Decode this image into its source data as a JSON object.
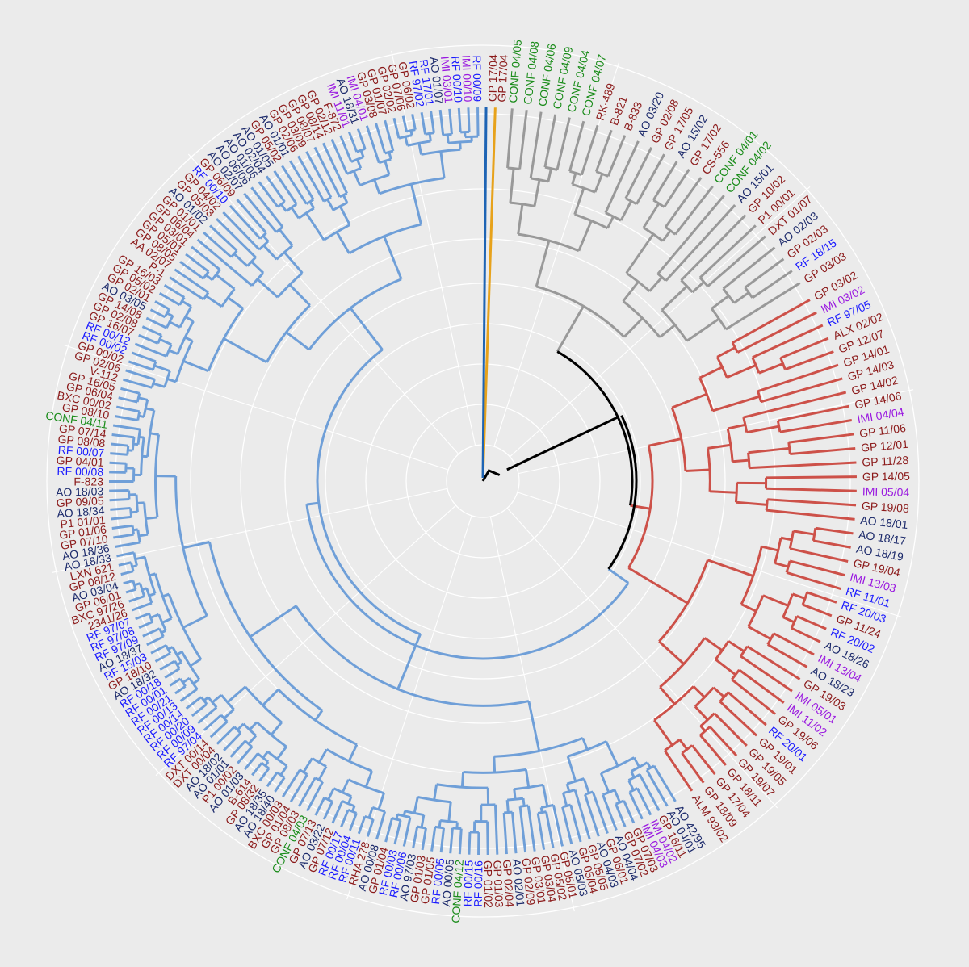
{
  "colors": {
    "background": "#ebebeb",
    "grid": "#ffffff",
    "clade_blue": "#6f9fd8",
    "clade_gray": "#999999",
    "clade_red": "#cd5149",
    "root_black": "#000000",
    "branch_orange": "#e7a21b",
    "branch_darkblue": "#1e64b4",
    "label_GP": "#8b1a1a",
    "label_AO": "#1c2a6b",
    "label_RF": "#1a1aff",
    "label_IMI": "#9a1ae0",
    "label_CONF": "#1a8c1a"
  },
  "tree": {
    "clades": [
      {
        "name": "root-gray",
        "color": "gray",
        "tips": [
          "CONF 04/05",
          "CONF 04/08",
          "CONF 04/06",
          "CONF 04/09",
          "CONF 04/04",
          "CONF 04/07",
          "RK-489",
          "B-821",
          "B-833",
          "AO 03/20",
          "GP 02/08",
          "GP 17/05",
          "AO 15/02",
          "GP 17/02",
          "CS-556",
          "CONF 04/01",
          "CONF 04/02",
          "AO 15/01",
          "GP 10/02",
          "P1 00/01",
          "DXT 01/07",
          "AO 02/03",
          "GP 02/03",
          "RF 18/15",
          "GP 03/03"
        ]
      },
      {
        "name": "root-red",
        "color": "red",
        "tips": [
          "GP 03/02",
          "IMI 03/02",
          "RF 97/05",
          "ALX 02/02",
          "GP 12/07",
          "GP 14/01",
          "GP 14/03",
          "GP 14/02",
          "GP 14/06",
          "IMI 04/04",
          "GP 11/06",
          "GP 12/01",
          "GP 11/28",
          "GP 14/05",
          "IMI 05/04",
          "GP 19/08",
          "AO 18/01",
          "AO 18/17",
          "AO 18/19",
          "GP 19/04",
          "IMI 13/03",
          "RF 11/01",
          "RF 20/03",
          "GP 11/24",
          "RF 20/02",
          "AO 18/26",
          "IMI 13/04",
          "AO 18/23",
          "GP 19/03",
          "IMI 05/01",
          "IMI 11/02",
          "GP 19/06",
          "RF 20/01",
          "GP 19/01",
          "GP 19/05",
          "GP 19/07",
          "GP 18/11",
          "GP 17/04",
          "GP 18/09",
          "ALM 93/02"
        ]
      },
      {
        "name": "root-blue",
        "color": "blue",
        "tips": [
          "AO 42/95",
          "AO 04/01",
          "GP 16/11",
          "IMI 04/02",
          "IMI 04/03",
          "GP 07/03",
          "GP 07/02",
          "AO 04/04",
          "GP 06/01",
          "AO 04/03",
          "GP 05/05",
          "GP 05/04",
          "AO 05/03",
          "GP 05/01",
          "GP 05/02",
          "GP 03/04",
          "GP 03/01",
          "GP 02/09",
          "AO 02/01",
          "GP 02/04",
          "GP 01/03",
          "GP 01/02",
          "RF 00/16",
          "RF 00/15",
          "CONF 04/12",
          "AO 00/05",
          "RF 00/05",
          "GP 01/05",
          "GP 01/03",
          "AO 97/03",
          "RF 00/06",
          "RF 00/03",
          "GP 01/04",
          "AO 00/08",
          "RHA 278",
          "RF 00/11",
          "RF 00/04",
          "RF 00/17",
          "GP 07/12",
          "AO 03/22",
          "GP 07/13",
          "CONF 04/03",
          "GP 08/03",
          "GP 01/04",
          "BXC 00/03",
          "AO 18/40",
          "AO 18/35",
          "GP 08/32",
          "B-614",
          "AO 01/03",
          "P1 00/02",
          "AO 01/01",
          "AO 18/02",
          "DXT 00/04",
          "DXT 00/14",
          "RF 97/04",
          "RF 00/09",
          "RF 00/20",
          "RF 00/14",
          "RF 00/13",
          "RF 00/21",
          "RF 00/01",
          "RF 00/18",
          "AO 18/32",
          "GP 18/10",
          "RF 15/03",
          "AO 18/37",
          "RF 97/09",
          "RF 97/08",
          "RF 97/07",
          "2341/26",
          "BXC 97/26",
          "GP 06/01",
          "AO 03/04",
          "GP 08/12",
          "LXN 621",
          "AO 18/33",
          "AO 18/36",
          "GP 07/10",
          "GP 01/06",
          "P1 01/01",
          "AO 18/34",
          "GP 09/05",
          "AO 18/03",
          "F-823",
          "RF 00/08",
          "GP 04/01",
          "RF 00/07",
          "GP 08/08",
          "GP 07/14",
          "CONF 04/11",
          "GP 08/10",
          "BXC 00/02",
          "GP 06/04",
          "GP 16/05",
          "V-112",
          "GP 02/06",
          "GP 00/02",
          "RF 00/02",
          "RF 00/12",
          "GP 16/07",
          "GP 02/08",
          "GP 14/08",
          "AO 03/05",
          "GP 02/01",
          "GP 05/02",
          "GP 16/03",
          "P-1",
          "AA 02/07",
          "GP 08/05",
          "GP 05/01",
          "GP 03/01",
          "GP 06/04",
          "GP 01/01",
          "AO 01/02",
          "GP 05/03",
          "GP 04/02",
          "RF 00/10",
          "GP 06/09",
          "AO 02/07",
          "AO 06/06",
          "AO 01/06",
          "AO 02/04",
          "AO 01/05",
          "GP 05/02",
          "AO 01/01",
          "GP 02/06",
          "GP 03/09",
          "GP 08/07",
          "GP 08/14",
          "GP 02/12",
          "F-872",
          "IMI 11/01",
          "AO 18/31",
          "IMI 04/01",
          "GP 03/08",
          "GP 01/07",
          "GP 02/02",
          "GP 07/06",
          "GP 06/02",
          "RF 97/02",
          "RF 17/01",
          "AO 01/07",
          "IMI 03/01",
          "RF 00/10",
          "IMI 00/10",
          "RF 00/09"
        ]
      }
    ],
    "singletons": [
      {
        "label": "GP 17/04",
        "branch": "orange"
      },
      {
        "label": "GP 17/04",
        "branch": "darkblue"
      }
    ]
  }
}
